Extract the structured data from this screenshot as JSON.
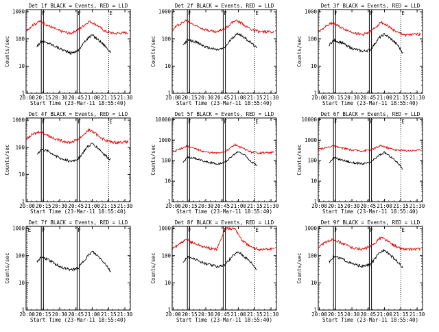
{
  "figure": {
    "xlabel": "Start Time (23-Mar-11 18:55:40)",
    "ylabel": "Counts/sec",
    "x_ticks": [
      "20:00",
      "20:15",
      "20:30",
      "20:45",
      "21:00",
      "21:15",
      "21:30"
    ],
    "y_ticks": [
      "1",
      "10",
      "100",
      "1000"
    ],
    "y_ticks_extended": [
      "1",
      "10",
      "100",
      "1000",
      "10000"
    ]
  },
  "chart_data": [
    {
      "type": "line",
      "title": "Det 1f BLACK = Events, RED = LLD",
      "xlabel": "Start Time (23-Mar-11 18:55:40)",
      "ylabel": "Counts/sec",
      "x_range": [
        "19:59",
        "21:35"
      ],
      "ylim": [
        1,
        1200
      ],
      "y_scale": "log",
      "markers": {
        "F": [
          "20:13",
          "20:15",
          "20:46",
          "20:48"
        ],
        "E": [
          "21:15"
        ]
      },
      "series": [
        {
          "name": "Events",
          "color": "#000000",
          "x": [
            "20:09",
            "20:13",
            "20:20",
            "20:30",
            "20:40",
            "20:47",
            "20:55",
            "21:00",
            "21:06",
            "21:12",
            "21:17"
          ],
          "values": [
            55,
            80,
            70,
            45,
            30,
            38,
            100,
            140,
            90,
            55,
            30
          ]
        },
        {
          "name": "LLD",
          "color": "#e00000",
          "x": [
            "19:59",
            "20:05",
            "20:12",
            "20:20",
            "20:30",
            "20:40",
            "20:48",
            "20:57",
            "21:03",
            "21:12",
            "21:20",
            "21:33"
          ],
          "values": [
            200,
            320,
            450,
            300,
            200,
            160,
            230,
            450,
            350,
            190,
            160,
            170
          ]
        }
      ]
    },
    {
      "type": "line",
      "title": "Det 2f BLACK = Events, RED = LLD",
      "xlabel": "Start Time (23-Mar-11 18:55:40)",
      "ylabel": "Counts/sec",
      "x_range": [
        "19:59",
        "21:35"
      ],
      "ylim": [
        1,
        1200
      ],
      "y_scale": "log",
      "markers": {
        "F": [
          "20:13",
          "20:15",
          "20:46",
          "20:48"
        ],
        "E": [
          "21:15"
        ]
      },
      "series": [
        {
          "name": "Events",
          "color": "#000000",
          "x": [
            "20:09",
            "20:13",
            "20:20",
            "20:30",
            "20:40",
            "20:47",
            "20:55",
            "21:00",
            "21:06",
            "21:12",
            "21:17"
          ],
          "values": [
            60,
            90,
            80,
            50,
            40,
            45,
            120,
            160,
            110,
            70,
            45
          ]
        },
        {
          "name": "LLD",
          "color": "#e00000",
          "x": [
            "19:59",
            "20:05",
            "20:12",
            "20:20",
            "20:30",
            "20:40",
            "20:48",
            "20:57",
            "21:03",
            "21:12",
            "21:20",
            "21:33"
          ],
          "values": [
            220,
            340,
            480,
            320,
            220,
            180,
            250,
            480,
            380,
            220,
            180,
            190
          ]
        }
      ]
    },
    {
      "type": "line",
      "title": "Det 3f BLACK = Events, RED = LLD",
      "xlabel": "Start Time (23-Mar-11 18:55:40)",
      "ylabel": "Counts/sec",
      "x_range": [
        "19:59",
        "21:35"
      ],
      "ylim": [
        1,
        1200
      ],
      "y_scale": "log",
      "markers": {
        "F": [
          "20:13",
          "20:15",
          "20:46",
          "20:48"
        ],
        "E": [
          "21:15"
        ]
      },
      "series": [
        {
          "name": "Events",
          "color": "#000000",
          "x": [
            "20:09",
            "20:13",
            "20:20",
            "20:30",
            "20:40",
            "20:47",
            "20:55",
            "21:00",
            "21:06",
            "21:12",
            "21:17"
          ],
          "values": [
            60,
            90,
            75,
            45,
            35,
            40,
            110,
            150,
            100,
            60,
            30
          ]
        },
        {
          "name": "LLD",
          "color": "#e00000",
          "x": [
            "19:59",
            "20:05",
            "20:12",
            "20:20",
            "20:30",
            "20:40",
            "20:48",
            "20:57",
            "21:03",
            "21:12",
            "21:20",
            "21:33"
          ],
          "values": [
            180,
            280,
            400,
            260,
            180,
            140,
            200,
            420,
            300,
            170,
            140,
            150
          ]
        }
      ]
    },
    {
      "type": "line",
      "title": "Det 4f BLACK = Events, RED = LLD",
      "xlabel": "Start Time (23-Mar-11 18:55:40)",
      "ylabel": "Counts/sec",
      "x_range": [
        "19:59",
        "21:35"
      ],
      "ylim": [
        1,
        1200
      ],
      "y_scale": "log",
      "markers": {
        "F": [
          "20:13",
          "20:15",
          "20:46",
          "20:48"
        ],
        "E": [
          "21:15"
        ]
      },
      "series": [
        {
          "name": "Events",
          "color": "#000000",
          "x": [
            "20:09",
            "20:13",
            "20:20",
            "20:30",
            "20:40",
            "20:47",
            "20:55",
            "21:00",
            "21:06",
            "21:12",
            "21:17"
          ],
          "values": [
            55,
            85,
            70,
            40,
            30,
            38,
            100,
            140,
            90,
            50,
            35
          ]
        },
        {
          "name": "LLD",
          "color": "#e00000",
          "x": [
            "19:59",
            "20:05",
            "20:12",
            "20:20",
            "20:30",
            "20:40",
            "20:48",
            "20:57",
            "21:03",
            "21:12",
            "21:20",
            "21:33"
          ],
          "values": [
            200,
            300,
            380,
            260,
            180,
            150,
            210,
            450,
            320,
            180,
            150,
            160
          ]
        }
      ]
    },
    {
      "type": "line",
      "title": "Det 5f BLACK = Events, RED = LLD",
      "xlabel": "Start Time (23-Mar-11 18:55:40)",
      "ylabel": "Counts/sec",
      "x_range": [
        "19:59",
        "21:35"
      ],
      "ylim": [
        1,
        12000
      ],
      "y_scale": "log",
      "markers": {
        "F": [
          "20:13",
          "20:15",
          "20:46",
          "20:48"
        ],
        "E": [
          "21:15"
        ]
      },
      "series": [
        {
          "name": "Events",
          "color": "#000000",
          "x": [
            "20:09",
            "20:13",
            "20:20",
            "20:30",
            "20:40",
            "20:47",
            "20:55",
            "21:00",
            "21:06",
            "21:12",
            "21:17"
          ],
          "values": [
            80,
            150,
            130,
            90,
            70,
            80,
            180,
            280,
            180,
            90,
            60
          ]
        },
        {
          "name": "LLD",
          "color": "#e00000",
          "x": [
            "19:59",
            "20:05",
            "20:12",
            "20:20",
            "20:30",
            "20:40",
            "20:48",
            "20:57",
            "21:03",
            "21:12",
            "21:20",
            "21:33"
          ],
          "values": [
            250,
            350,
            500,
            380,
            260,
            230,
            280,
            600,
            420,
            260,
            240,
            250
          ]
        }
      ]
    },
    {
      "type": "line",
      "title": "Det 6f BLACK = Events, RED = LLD",
      "xlabel": "Start Time (23-Mar-11 18:55:40)",
      "ylabel": "Counts/sec",
      "x_range": [
        "19:59",
        "21:35"
      ],
      "ylim": [
        1,
        12000
      ],
      "y_scale": "log",
      "markers": {
        "F": [
          "20:13",
          "20:15",
          "20:46",
          "20:48"
        ],
        "E": [
          "21:15"
        ]
      },
      "series": [
        {
          "name": "Events",
          "color": "#000000",
          "x": [
            "20:09",
            "20:13",
            "20:20",
            "20:30",
            "20:40",
            "20:47",
            "20:55",
            "21:00",
            "21:06",
            "21:12",
            "21:17"
          ],
          "values": [
            80,
            140,
            110,
            80,
            70,
            80,
            180,
            250,
            150,
            80,
            40
          ]
        },
        {
          "name": "LLD",
          "color": "#e00000",
          "x": [
            "19:59",
            "20:05",
            "20:12",
            "20:20",
            "20:30",
            "20:40",
            "20:48",
            "20:57",
            "21:03",
            "21:12",
            "21:20",
            "21:33"
          ],
          "values": [
            350,
            420,
            520,
            420,
            330,
            300,
            350,
            550,
            420,
            320,
            310,
            320
          ]
        }
      ]
    },
    {
      "type": "line",
      "title": "Det 7f BLACK = Events, RED = LLD",
      "xlabel": "Start Time (23-Mar-11 18:55:40)",
      "ylabel": "Counts/sec",
      "x_range": [
        "19:59",
        "21:35"
      ],
      "ylim": [
        1,
        1200
      ],
      "y_scale": "log",
      "markers": {
        "F": [
          "20:13",
          "20:15",
          "20:46",
          "20:48"
        ],
        "E": [
          "20:00"
        ]
      },
      "series": [
        {
          "name": "Events",
          "color": "#000000",
          "x": [
            "20:09",
            "20:13",
            "20:20",
            "20:30",
            "20:40",
            "20:47",
            "20:55",
            "21:00",
            "21:06",
            "21:12",
            "21:17"
          ],
          "values": [
            60,
            90,
            70,
            40,
            30,
            35,
            90,
            140,
            90,
            50,
            25
          ]
        }
      ]
    },
    {
      "type": "line",
      "title": "Det 8f BLACK = Events, RED = LLD",
      "xlabel": "Start Time (23-Mar-11 18:55:40)",
      "ylabel": "Counts/sec",
      "x_range": [
        "19:59",
        "21:35"
      ],
      "ylim": [
        1,
        1200
      ],
      "y_scale": "log",
      "markers": {
        "F": [
          "20:13",
          "20:15",
          "20:46",
          "20:48"
        ],
        "E": [
          "21:15"
        ]
      },
      "series": [
        {
          "name": "Events",
          "color": "#000000",
          "x": [
            "20:09",
            "20:13",
            "20:20",
            "20:30",
            "20:40",
            "20:47",
            "20:55",
            "21:00",
            "21:06",
            "21:12",
            "21:17"
          ],
          "values": [
            60,
            90,
            75,
            50,
            40,
            45,
            100,
            140,
            90,
            55,
            30
          ]
        },
        {
          "name": "LLD",
          "color": "#e00000",
          "x": [
            "19:59",
            "20:05",
            "20:12",
            "20:20",
            "20:30",
            "20:40",
            "20:48",
            "20:57",
            "21:03",
            "21:12",
            "21:20",
            "21:33"
          ],
          "values": [
            180,
            260,
            380,
            280,
            200,
            170,
            1000,
            1000,
            380,
            200,
            170,
            180
          ]
        }
      ]
    },
    {
      "type": "line",
      "title": "Det 9f BLACK = Events, RED = LLD",
      "xlabel": "Start Time (23-Mar-11 18:55:40)",
      "ylabel": "Counts/sec",
      "x_range": [
        "19:59",
        "21:35"
      ],
      "ylim": [
        1,
        1200
      ],
      "y_scale": "log",
      "markers": {
        "F": [
          "20:13",
          "20:15",
          "20:46",
          "20:48"
        ],
        "E": [
          "21:15"
        ]
      },
      "series": [
        {
          "name": "Events",
          "color": "#000000",
          "x": [
            "20:09",
            "20:13",
            "20:20",
            "20:30",
            "20:40",
            "20:47",
            "20:55",
            "21:00",
            "21:06",
            "21:12",
            "21:17"
          ],
          "values": [
            60,
            95,
            80,
            50,
            40,
            48,
            120,
            170,
            100,
            60,
            35
          ]
        },
        {
          "name": "LLD",
          "color": "#e00000",
          "x": [
            "19:59",
            "20:05",
            "20:12",
            "20:20",
            "20:30",
            "20:40",
            "20:48",
            "20:57",
            "21:03",
            "21:12",
            "21:20",
            "21:33"
          ],
          "values": [
            200,
            300,
            400,
            300,
            200,
            170,
            230,
            480,
            340,
            200,
            170,
            180
          ]
        }
      ]
    }
  ]
}
